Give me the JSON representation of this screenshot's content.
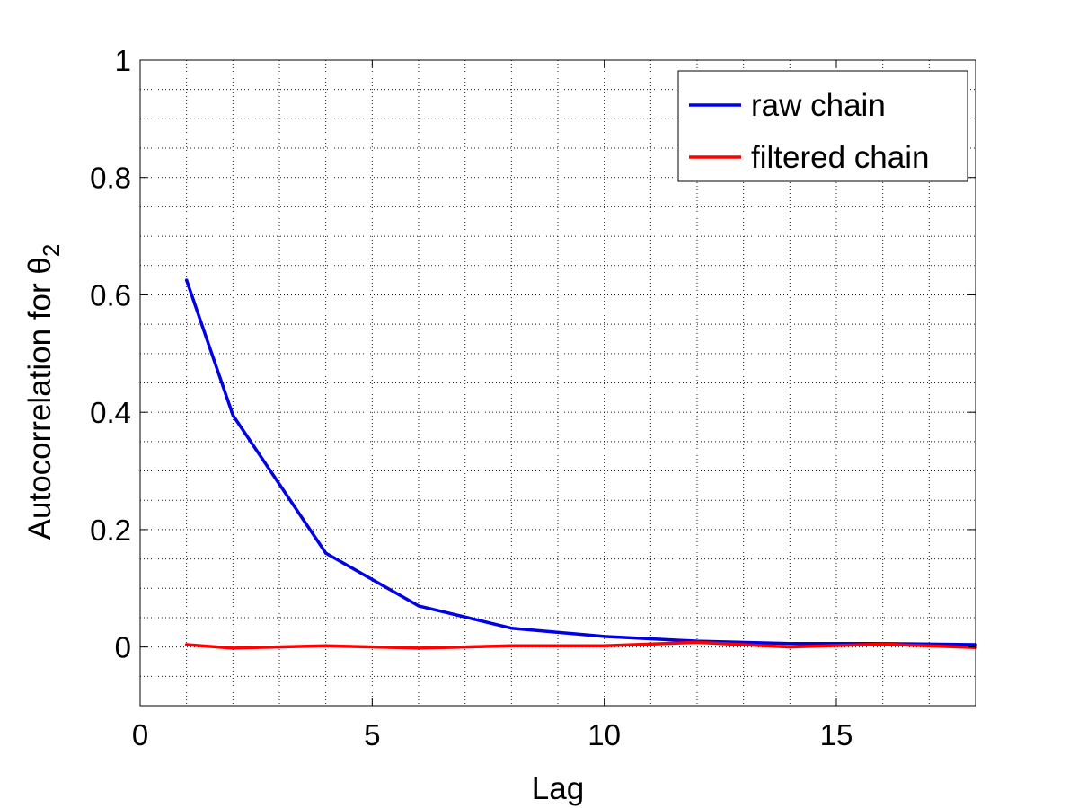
{
  "chart_data": {
    "type": "line",
    "xlabel": "Lag",
    "ylabel": "Autocorrelation for θ",
    "ylabel_subscript": "2",
    "xlim": [
      0,
      18
    ],
    "ylim": [
      -0.1,
      1
    ],
    "xticks": [
      0,
      5,
      10,
      15
    ],
    "xtick_labels": [
      "0",
      "5",
      "10",
      "15"
    ],
    "yticks": [
      0,
      0.2,
      0.4,
      0.6,
      0.8,
      1
    ],
    "ytick_labels": [
      "0",
      "0.2",
      "0.4",
      "0.6",
      "0.8",
      "1"
    ],
    "grid": true,
    "grid_style": "dotted minor grid",
    "legend_position": "top-right",
    "series": [
      {
        "name": "raw chain",
        "color": "#0000e6",
        "x": [
          1,
          2,
          4,
          6,
          8,
          10,
          12,
          14,
          16,
          18
        ],
        "y": [
          0.625,
          0.395,
          0.16,
          0.07,
          0.032,
          0.018,
          0.01,
          0.006,
          0.006,
          0.004
        ]
      },
      {
        "name": "filtered chain",
        "color": "#ff0000",
        "x": [
          1,
          2,
          4,
          6,
          8,
          10,
          12,
          14,
          16,
          18
        ],
        "y": [
          0.004,
          -0.002,
          0.002,
          -0.002,
          0.002,
          0.002,
          0.008,
          0.0,
          0.005,
          -0.001
        ]
      }
    ]
  }
}
